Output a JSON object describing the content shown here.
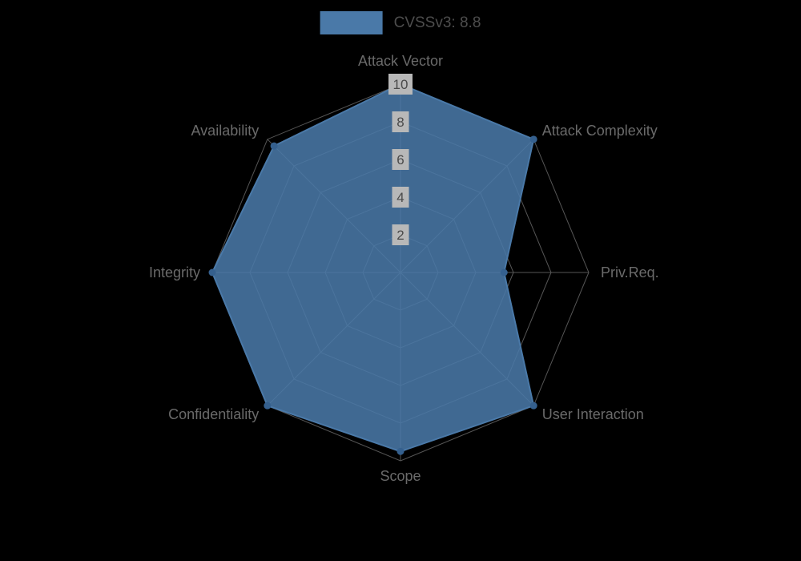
{
  "legend": {
    "label": "CVSSv3: 8.8"
  },
  "chart_data": {
    "type": "radar",
    "title": "CVSSv3: 8.8",
    "legend_position": "top",
    "axis_max": 10,
    "rings": [
      2,
      4,
      6,
      8,
      10
    ],
    "categories": [
      "Attack Vector",
      "Attack Complexity",
      "Priv.Req.",
      "User Interaction",
      "Scope",
      "Confidentiality",
      "Integrity",
      "Availability"
    ],
    "series": [
      {
        "name": "CVSSv3: 8.8",
        "values": [
          10,
          10,
          5.5,
          10,
          9.5,
          10,
          10,
          9.5
        ]
      }
    ],
    "colors": {
      "fill": "#4a79a8",
      "dot": "#35608e",
      "grid": "#565656",
      "tick_bg": "#b8b8b8",
      "tick_text": "#4a4a4a",
      "axis_label": "#6a6a6a",
      "title": "#4d4d4d",
      "background": "#000000"
    }
  }
}
